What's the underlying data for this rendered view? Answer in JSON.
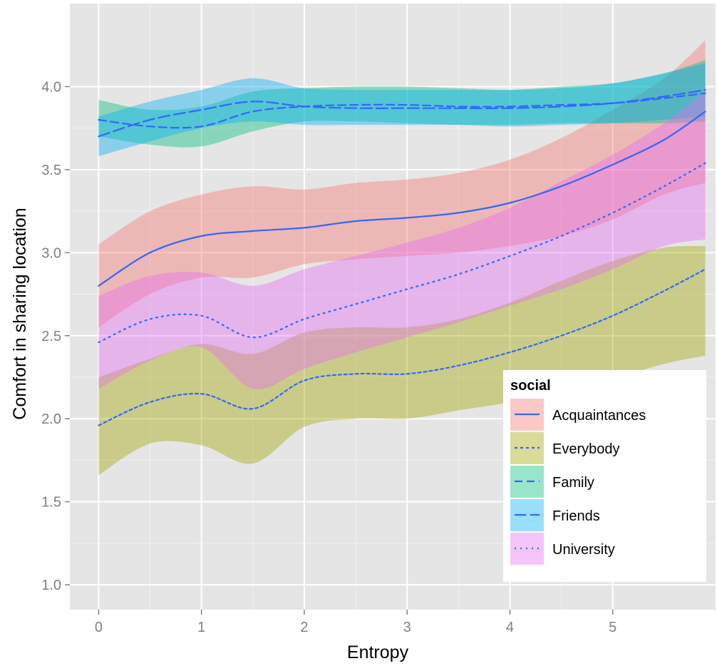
{
  "chart_data": {
    "type": "line",
    "title": "",
    "xlabel": "Entropy",
    "ylabel": "Comfort in sharing location",
    "xlim": [
      -0.28,
      6.0
    ],
    "ylim": [
      0.85,
      4.5
    ],
    "x_ticks": [
      0,
      1,
      2,
      3,
      4,
      5
    ],
    "y_ticks": [
      1.0,
      1.5,
      2.0,
      2.5,
      3.0,
      3.5,
      4.0
    ],
    "x_tick_labels": [
      "0",
      "1",
      "2",
      "3",
      "4",
      "5"
    ],
    "y_tick_labels": [
      "1.0",
      "1.5",
      "2.0",
      "2.5",
      "3.0",
      "3.5",
      "4.0"
    ],
    "grid": true,
    "line_color": "#3366FF",
    "legend": {
      "title": "social",
      "position": "right-bottom"
    },
    "series": [
      {
        "name": "Acquaintances",
        "fill": "#F8766D",
        "dash": "solid",
        "x": [
          0,
          0.5,
          1,
          1.5,
          2,
          2.5,
          3,
          3.5,
          4,
          4.5,
          5,
          5.5,
          5.9
        ],
        "y": [
          2.8,
          3.0,
          3.1,
          3.13,
          3.15,
          3.19,
          3.21,
          3.24,
          3.3,
          3.4,
          3.53,
          3.68,
          3.85
        ],
        "lower": [
          2.55,
          2.75,
          2.85,
          2.85,
          2.93,
          2.96,
          2.98,
          3.0,
          3.04,
          3.1,
          3.2,
          3.35,
          3.42
        ],
        "upper": [
          3.05,
          3.25,
          3.35,
          3.4,
          3.38,
          3.42,
          3.44,
          3.48,
          3.56,
          3.69,
          3.86,
          4.05,
          4.28
        ]
      },
      {
        "name": "Everybody",
        "fill": "#A3A500",
        "dash": "short",
        "x": [
          0,
          0.5,
          1,
          1.5,
          2,
          2.5,
          3,
          3.5,
          4,
          4.5,
          5,
          5.5,
          5.9
        ],
        "y": [
          1.96,
          2.1,
          2.15,
          2.06,
          2.23,
          2.27,
          2.27,
          2.32,
          2.4,
          2.5,
          2.62,
          2.77,
          2.9
        ],
        "lower": [
          1.66,
          1.85,
          1.84,
          1.73,
          1.95,
          2.0,
          2.0,
          2.05,
          2.1,
          2.17,
          2.24,
          2.33,
          2.38
        ],
        "upper": [
          2.25,
          2.36,
          2.45,
          2.39,
          2.52,
          2.55,
          2.55,
          2.6,
          2.7,
          2.83,
          2.95,
          3.03,
          3.04
        ]
      },
      {
        "name": "Family",
        "fill": "#00BF7D",
        "dash": "dashed",
        "x": [
          0,
          0.5,
          1,
          1.5,
          2,
          2.5,
          3,
          3.5,
          4,
          4.5,
          5,
          5.5,
          5.9
        ],
        "y": [
          3.8,
          3.76,
          3.76,
          3.85,
          3.88,
          3.89,
          3.89,
          3.88,
          3.88,
          3.89,
          3.9,
          3.93,
          3.96
        ],
        "lower": [
          3.7,
          3.65,
          3.64,
          3.73,
          3.79,
          3.79,
          3.78,
          3.77,
          3.77,
          3.78,
          3.78,
          3.78,
          3.79
        ],
        "upper": [
          3.92,
          3.86,
          3.88,
          3.97,
          3.99,
          4.0,
          4.0,
          3.99,
          3.98,
          4.0,
          4.02,
          4.08,
          4.16
        ]
      },
      {
        "name": "Friends",
        "fill": "#00B0F6",
        "dash": "longdash",
        "x": [
          0,
          0.5,
          1,
          1.5,
          2,
          2.5,
          3,
          3.5,
          4,
          4.5,
          5,
          5.5,
          5.9
        ],
        "y": [
          3.7,
          3.8,
          3.86,
          3.91,
          3.88,
          3.87,
          3.87,
          3.87,
          3.87,
          3.88,
          3.9,
          3.94,
          3.98
        ],
        "lower": [
          3.58,
          3.67,
          3.75,
          3.79,
          3.77,
          3.77,
          3.77,
          3.77,
          3.76,
          3.77,
          3.78,
          3.8,
          3.82
        ],
        "upper": [
          3.82,
          3.91,
          3.98,
          4.05,
          3.99,
          3.98,
          3.98,
          3.98,
          3.98,
          3.99,
          4.02,
          4.08,
          4.14
        ]
      },
      {
        "name": "University",
        "fill": "#E76BF3",
        "dash": "dotted",
        "x": [
          0,
          0.5,
          1,
          1.5,
          2,
          2.5,
          3,
          3.5,
          4,
          4.5,
          5,
          5.5,
          5.9
        ],
        "y": [
          2.46,
          2.6,
          2.62,
          2.49,
          2.6,
          2.69,
          2.78,
          2.87,
          2.98,
          3.1,
          3.24,
          3.4,
          3.54
        ],
        "lower": [
          2.18,
          2.35,
          2.43,
          2.18,
          2.3,
          2.4,
          2.49,
          2.58,
          2.68,
          2.78,
          2.9,
          3.04,
          3.08
        ],
        "upper": [
          2.74,
          2.86,
          2.88,
          2.8,
          2.9,
          2.98,
          3.06,
          3.15,
          3.27,
          3.43,
          3.59,
          3.78,
          3.97
        ]
      }
    ]
  }
}
